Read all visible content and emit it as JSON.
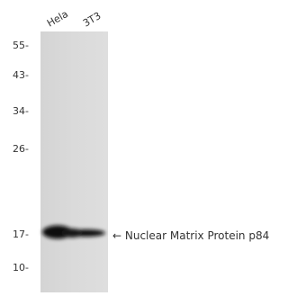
{
  "lanes": [
    "Hela",
    "3T3"
  ],
  "markers": [
    "55-",
    "43-",
    "34-",
    "26-",
    "17-",
    "10-"
  ],
  "annotation": "← Nuclear Matrix Protein p84"
}
